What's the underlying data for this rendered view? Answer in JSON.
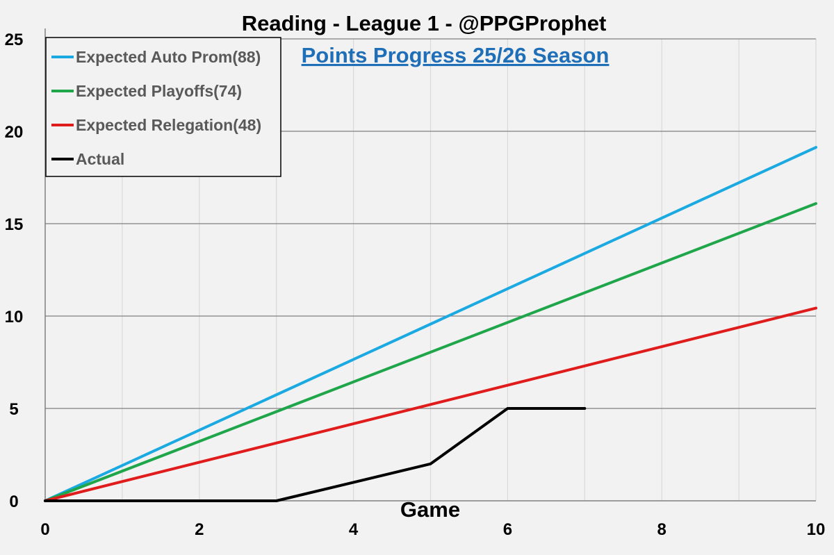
{
  "chart_data": {
    "type": "line",
    "title": "Reading - League 1 - @PPGProphet",
    "subtitle": "Points Progress 25/26 Season",
    "xlabel": "Game",
    "ylabel": "",
    "xlim": [
      0,
      10
    ],
    "ylim": [
      0,
      25
    ],
    "x_ticks": [
      0,
      2,
      4,
      6,
      8,
      10
    ],
    "y_ticks": [
      0,
      5,
      10,
      15,
      20,
      25
    ],
    "grid": true,
    "legend_position": "top-left",
    "series": [
      {
        "name": "Expected Auto Prom(88)",
        "color": "#1ba9e2",
        "x": [
          0,
          10
        ],
        "y": [
          0,
          19.13
        ]
      },
      {
        "name": "Expected Playoffs(74)",
        "color": "#1fa64a",
        "x": [
          0,
          10
        ],
        "y": [
          0,
          16.09
        ]
      },
      {
        "name": "Expected Relegation(48)",
        "color": "#e01b1b",
        "x": [
          0,
          10
        ],
        "y": [
          0,
          10.43
        ]
      },
      {
        "name": "Actual",
        "color": "#000000",
        "x": [
          0,
          1,
          2,
          3,
          4,
          5,
          6,
          7
        ],
        "y": [
          0,
          0,
          0,
          0,
          1,
          2,
          5,
          5
        ]
      }
    ]
  }
}
